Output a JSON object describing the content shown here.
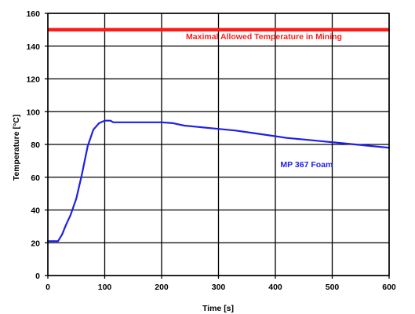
{
  "chart_data": {
    "type": "line",
    "title": "",
    "xlabel": "Time [s]",
    "ylabel": "Temperature [°C]",
    "xlim": [
      0,
      600
    ],
    "ylim": [
      0,
      160
    ],
    "xticks": [
      0,
      100,
      200,
      300,
      400,
      500,
      600
    ],
    "yticks": [
      0,
      20,
      40,
      60,
      80,
      100,
      120,
      140,
      160
    ],
    "grid": true,
    "series": [
      {
        "name": "MP 367 Foam",
        "color": "#1f1fe6",
        "x": [
          0,
          18,
          25,
          32,
          40,
          50,
          60,
          70,
          80,
          90,
          100,
          110,
          115,
          140,
          170,
          200,
          220,
          240,
          270,
          300,
          330,
          360,
          390,
          420,
          450,
          480,
          510,
          540,
          570,
          600
        ],
        "y": [
          21,
          21,
          25,
          31,
          37,
          47,
          62,
          79,
          89,
          93,
          94.5,
          94.5,
          93.5,
          93.5,
          93.5,
          93.5,
          93,
          91.5,
          90.5,
          89.5,
          88.5,
          87,
          85.5,
          84,
          83,
          82,
          81,
          80,
          79,
          78
        ]
      }
    ],
    "reference_lines": [
      {
        "label": "Maximal Allowed Temperature in Mining",
        "y": 150,
        "color": "#ff1a1a"
      }
    ],
    "annotations": [
      {
        "text": "Maximal Allowed Temperature in Mining",
        "x": 380,
        "y": 146,
        "color": "#ff1a1a"
      },
      {
        "text": "MP 367 Foam",
        "x": 455,
        "y": 68,
        "color": "#1f1fe6"
      }
    ]
  }
}
